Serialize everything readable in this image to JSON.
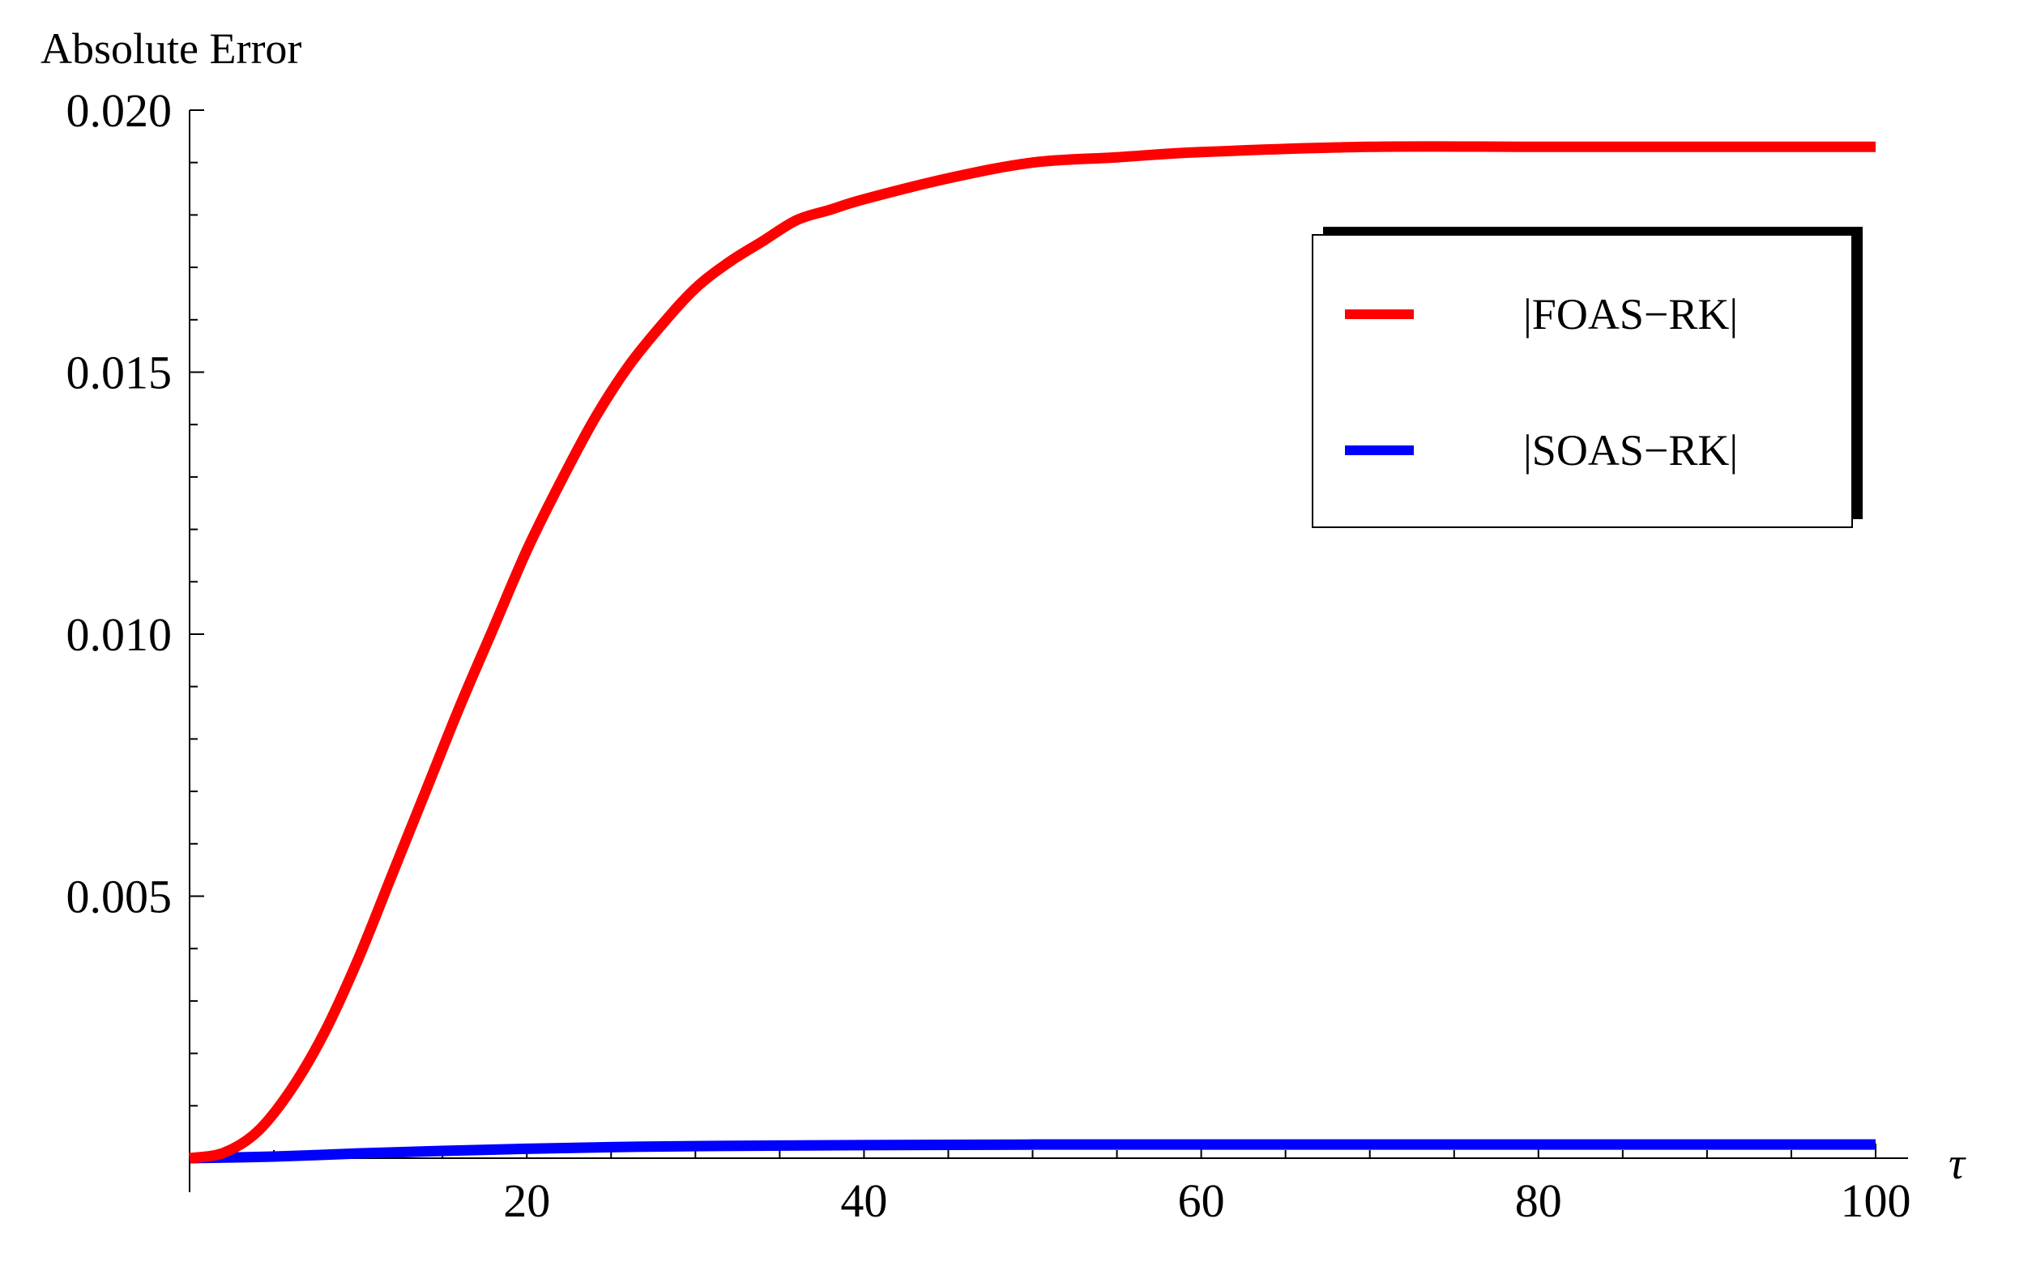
{
  "chart_data": {
    "type": "line",
    "title": "",
    "ylabel": "Absolute Error",
    "xlabel": "τ",
    "xlim": [
      0,
      100
    ],
    "ylim": [
      0,
      0.02
    ],
    "x_ticks": [
      20,
      40,
      60,
      80,
      100
    ],
    "x_tick_labels": [
      "20",
      "40",
      "60",
      "80",
      "100"
    ],
    "y_ticks": [
      0.005,
      0.01,
      0.015,
      0.02
    ],
    "y_tick_labels": [
      "0.005",
      "0.010",
      "0.015",
      "0.020"
    ],
    "grid": false,
    "legend_position": "top-right",
    "series": [
      {
        "name": "|FOAS−RK|",
        "color": "#ff0000",
        "x": [
          0,
          2,
          4,
          6,
          8,
          10,
          12,
          14,
          16,
          18,
          20,
          22,
          24,
          26,
          28,
          30,
          32,
          34,
          36,
          38,
          40,
          45,
          50,
          55,
          60,
          70,
          80,
          90,
          100
        ],
        "y": [
          0,
          0.0001,
          0.0005,
          0.0013,
          0.0024,
          0.0038,
          0.0054,
          0.007,
          0.0086,
          0.0101,
          0.0116,
          0.0129,
          0.0141,
          0.0151,
          0.0159,
          0.0166,
          0.0171,
          0.0175,
          0.0179,
          0.0181,
          0.0183,
          0.0187,
          0.019,
          0.0191,
          0.0192,
          0.0193,
          0.0193,
          0.0193,
          0.0193
        ]
      },
      {
        "name": "|SOAS−RK|",
        "color": "#0000ff",
        "x": [
          0,
          5,
          10,
          15,
          20,
          25,
          30,
          40,
          50,
          60,
          70,
          80,
          90,
          100
        ],
        "y": [
          0,
          3e-05,
          9e-05,
          0.00014,
          0.00018,
          0.00021,
          0.00023,
          0.00025,
          0.00026,
          0.00026,
          0.00026,
          0.00026,
          0.00026,
          0.00026
        ]
      }
    ]
  }
}
